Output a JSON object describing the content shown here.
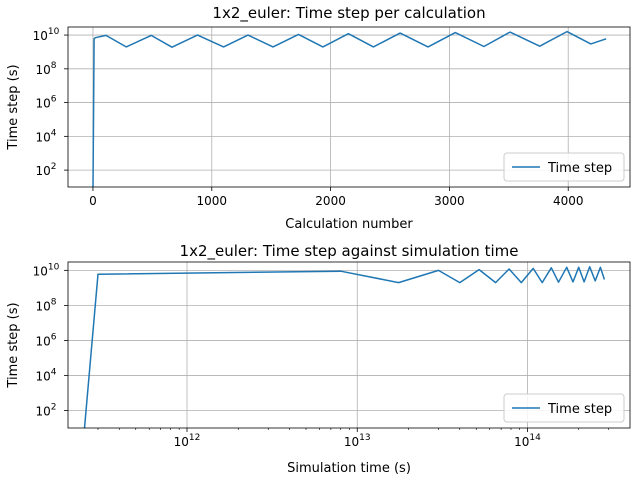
{
  "chart_data": [
    {
      "type": "line",
      "title": "1x2_euler: Time step per calculation",
      "xlabel": "Calculation number",
      "ylabel": "Time step (s)",
      "xscale": "linear",
      "yscale": "log",
      "xlim": [
        -210,
        4520
      ],
      "ylim": [
        10,
        30000000000
      ],
      "grid": true,
      "legend_position": "lower-right",
      "series_color": "#1f77b4",
      "x_ticks": [
        {
          "value": 0,
          "label": "0"
        },
        {
          "value": 1000,
          "label": "1000"
        },
        {
          "value": 2000,
          "label": "2000"
        },
        {
          "value": 3000,
          "label": "3000"
        },
        {
          "value": 4000,
          "label": "4000"
        }
      ],
      "y_ticks": [
        {
          "value": 100,
          "base": "10",
          "exp": "2"
        },
        {
          "value": 10000,
          "base": "10",
          "exp": "4"
        },
        {
          "value": 1000000,
          "base": "10",
          "exp": "6"
        },
        {
          "value": 100000000,
          "base": "10",
          "exp": "8"
        },
        {
          "value": 10000000000,
          "base": "10",
          "exp": "10"
        }
      ],
      "series": [
        {
          "name": "Time step",
          "x": [
            0,
            10,
            20,
            110,
            280,
            490,
            665,
            880,
            1100,
            1305,
            1515,
            1730,
            1935,
            2150,
            2360,
            2585,
            2820,
            3050,
            3290,
            3510,
            3760,
            3990,
            4190,
            4320
          ],
          "y": [
            10,
            6000000000,
            7000000000,
            9500000000,
            2000000000,
            9500000000,
            1900000000,
            10000000000,
            2000000000,
            10000000000,
            2000000000,
            11000000000,
            2000000000,
            12000000000,
            2000000000,
            13000000000,
            2000000000,
            14000000000,
            2100000000,
            15000000000,
            2200000000,
            16000000000,
            3000000000,
            6000000000
          ]
        }
      ]
    },
    {
      "type": "line",
      "title": "1x2_euler: Time step against simulation time",
      "xlabel": "Simulation time (s)",
      "ylabel": "Time step (s)",
      "xscale": "log",
      "yscale": "log",
      "xlim": [
        200000000000,
        400000000000000
      ],
      "ylim": [
        10,
        30000000000
      ],
      "grid": true,
      "legend_position": "lower-right",
      "series_color": "#1f77b4",
      "x_ticks": [
        {
          "value": 1000000000000,
          "base": "10",
          "exp": "12"
        },
        {
          "value": 10000000000000,
          "base": "10",
          "exp": "13"
        },
        {
          "value": 100000000000000,
          "base": "10",
          "exp": "14"
        }
      ],
      "y_ticks": [
        {
          "value": 100,
          "base": "10",
          "exp": "2"
        },
        {
          "value": 10000,
          "base": "10",
          "exp": "4"
        },
        {
          "value": 1000000,
          "base": "10",
          "exp": "6"
        },
        {
          "value": 100000000,
          "base": "10",
          "exp": "8"
        },
        {
          "value": 10000000000,
          "base": "10",
          "exp": "10"
        }
      ],
      "series": [
        {
          "name": "Time step",
          "x": [
            250000000000,
            300000000000,
            8000000000000,
            17500000000000,
            30000000000000,
            40000000000000,
            52000000000000,
            65000000000000,
            78000000000000,
            92000000000000,
            108000000000000,
            122000000000000,
            138000000000000,
            152000000000000,
            170000000000000,
            185000000000000,
            200000000000000,
            215000000000000,
            232000000000000,
            250000000000000,
            268000000000000,
            283000000000000
          ],
          "y": [
            10,
            6000000000,
            9000000000,
            2000000000,
            10000000000,
            2000000000,
            11000000000,
            2000000000,
            12000000000,
            2000000000,
            13000000000,
            2000000000,
            14000000000,
            2100000000,
            15000000000,
            2200000000,
            15000000000,
            2200000000,
            16000000000,
            2500000000,
            15000000000,
            3000000000
          ]
        }
      ]
    }
  ]
}
